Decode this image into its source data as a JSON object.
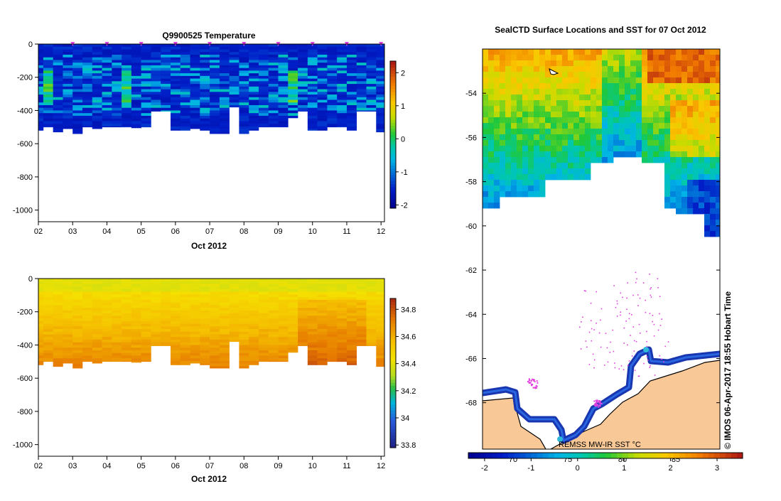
{
  "chart_data": [
    {
      "type": "heatmap",
      "title": "Q9900525  Temperature",
      "xlabel": "Oct 2012",
      "x_ticks": [
        "02",
        "03",
        "04",
        "05",
        "06",
        "07",
        "08",
        "09",
        "10",
        "11",
        "12"
      ],
      "xlim": [
        2,
        12.1
      ],
      "y_ticks": [
        "0",
        "-200",
        "-400",
        "-600",
        "-800",
        "-1000"
      ],
      "y_tick_values": [
        0,
        -200,
        -400,
        -600,
        -800,
        -1000
      ],
      "ylim": [
        -1070,
        0
      ],
      "colorbar_ticks": [
        "2",
        "1",
        "0",
        "-1",
        "-2"
      ],
      "colorbar_values": [
        2,
        1,
        0,
        -1,
        -2
      ],
      "colorbar_range": [
        -2.1,
        2.35
      ],
      "profile_depths": [
        -520,
        -500,
        -530,
        -510,
        -540,
        -500,
        -510,
        -500,
        -500,
        -500,
        -505,
        -500,
        -405,
        -405,
        -520,
        -520,
        -510,
        -520,
        -540,
        -540,
        -380,
        -540,
        -520,
        -500,
        -500,
        -500,
        -445,
        -405,
        -520,
        -520,
        -500,
        -500,
        -520,
        -405,
        -405,
        -530
      ],
      "markers": [
        3,
        4,
        5,
        6,
        7,
        8,
        9,
        10,
        11,
        12
      ]
    },
    {
      "type": "heatmap",
      "title": "",
      "xlabel": "Oct 2012",
      "x_ticks": [
        "02",
        "03",
        "04",
        "05",
        "06",
        "07",
        "08",
        "09",
        "10",
        "11",
        "12"
      ],
      "xlim": [
        2,
        12.1
      ],
      "y_ticks": [
        "0",
        "-200",
        "-400",
        "-600",
        "-800",
        "-1000"
      ],
      "y_tick_values": [
        0,
        -200,
        -400,
        -600,
        -800,
        -1000
      ],
      "ylim": [
        -1070,
        0
      ],
      "colorbar_ticks": [
        "34.8",
        "34.6",
        "34.4",
        "34.2",
        "34",
        "33.8"
      ],
      "colorbar_values": [
        34.8,
        34.6,
        34.4,
        34.2,
        34.0,
        33.8
      ],
      "colorbar_range": [
        33.78,
        34.88
      ]
    },
    {
      "type": "heatmap",
      "title": "SealCTD Surface Locations and SST for 07 Oct 2012",
      "y_ticks": [
        "-54",
        "-56",
        "-58",
        "-60",
        "-62",
        "-64",
        "-66",
        "-68"
      ],
      "y_tick_values": [
        -54,
        -56,
        -58,
        -60,
        -62,
        -64,
        -66,
        -68
      ],
      "ylim": [
        -70.1,
        -52.0
      ],
      "x_ticks": [
        "70",
        "75",
        "80",
        "85"
      ],
      "colorbar_label": "REMSS MW-IR SST °C",
      "colorbar_ticks": [
        "-2",
        "-1",
        "0",
        "1",
        "2",
        "3"
      ],
      "colorbar_values": [
        -2,
        -1,
        0,
        1,
        2,
        3
      ],
      "colorbar_range": [
        -2.35,
        3.55
      ],
      "credit": "© IMOS 06-Apr-2017 18:55 Hobart Time"
    }
  ],
  "colors": {
    "ocean_deep": "#1a3aa8",
    "land": "#f8c896",
    "marker": "#e040e0"
  }
}
